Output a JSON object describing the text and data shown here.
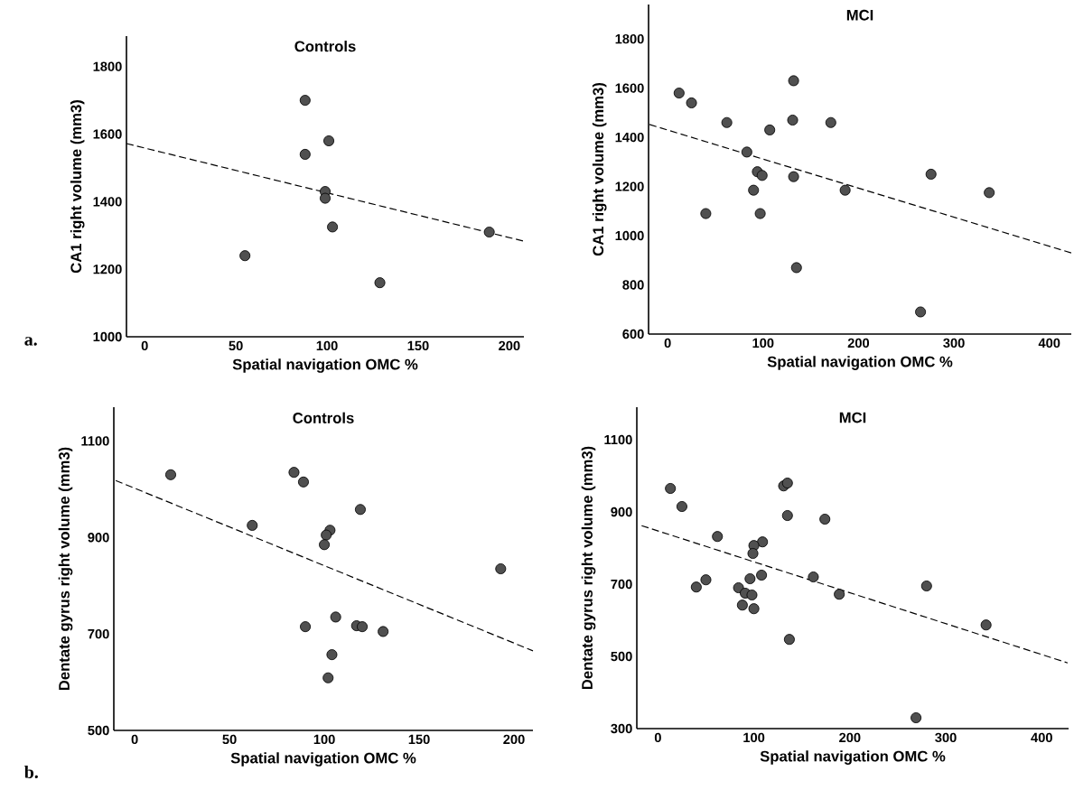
{
  "chart_data": [
    {
      "type": "scatter",
      "title": "Controls",
      "xlabel": "Spatial navigation OMC %",
      "ylabel": "CA1 right volume (mm3)",
      "xlim": [
        -10,
        208
      ],
      "ylim": [
        1000,
        1890
      ],
      "xticks": [
        0,
        50,
        100,
        150,
        200
      ],
      "yticks": [
        1000,
        1200,
        1400,
        1600,
        1800
      ],
      "annotations": [
        "a."
      ],
      "series": [
        {
          "marker": "circle",
          "color": "#505050",
          "x": [
            88,
            101,
            88,
            99,
            99,
            103,
            55,
            129,
            189
          ],
          "values": [
            1700,
            1580,
            1540,
            1430,
            1410,
            1325,
            1240,
            1160,
            1310
          ]
        },
        {
          "type": "line",
          "line_style": "dashed",
          "color": "#000000",
          "x": [
            -10,
            208
          ],
          "values": [
            1572,
            1283
          ]
        }
      ]
    },
    {
      "type": "scatter",
      "title": "MCI",
      "xlabel": "Spatial navigation OMC %",
      "ylabel": "CA1 right volume (mm3)",
      "xlim": [
        -20,
        423
      ],
      "ylim": [
        600,
        1940
      ],
      "xticks": [
        0,
        100,
        200,
        300,
        400
      ],
      "yticks": [
        600,
        800,
        1000,
        1200,
        1400,
        1600,
        1800
      ],
      "series": [
        {
          "marker": "circle",
          "color": "#505050",
          "x": [
            12,
            25,
            132,
            62,
            107,
            131,
            171,
            83,
            94,
            99,
            132,
            90,
            186,
            276,
            337,
            40,
            97,
            135,
            265
          ],
          "values": [
            1580,
            1540,
            1630,
            1460,
            1430,
            1470,
            1460,
            1340,
            1260,
            1245,
            1240,
            1185,
            1185,
            1250,
            1175,
            1090,
            1090,
            870,
            690
          ]
        },
        {
          "type": "line",
          "line_style": "dashed",
          "color": "#000000",
          "x": [
            -19,
            423
          ],
          "values": [
            1452,
            930
          ]
        }
      ]
    },
    {
      "type": "scatter",
      "title": "Controls",
      "xlabel": "Spatial navigation OMC %",
      "ylabel": "Dentate gyrus right volume (mm3)",
      "xlim": [
        -11,
        210
      ],
      "ylim": [
        500,
        1170
      ],
      "xticks": [
        0,
        50,
        100,
        150,
        200
      ],
      "yticks": [
        500,
        700,
        900,
        1100
      ],
      "annotations": [
        "b."
      ],
      "series": [
        {
          "marker": "circle",
          "color": "#505050",
          "x": [
            19,
            84,
            89,
            119,
            62,
            103,
            101,
            100,
            193,
            106,
            90,
            117,
            120,
            131,
            104,
            102
          ],
          "values": [
            1030,
            1035,
            1015,
            958,
            925,
            915,
            905,
            885,
            835,
            735,
            715,
            717,
            715,
            705,
            657,
            609
          ]
        },
        {
          "type": "line",
          "line_style": "dashed",
          "color": "#000000",
          "x": [
            -10,
            210
          ],
          "values": [
            1018,
            665
          ]
        }
      ]
    },
    {
      "type": "scatter",
      "title": "MCI",
      "xlabel": "Spatial navigation OMC %",
      "ylabel": "Dentate gyrus right volume (mm3)",
      "xlim": [
        -22,
        428
      ],
      "ylim": [
        300,
        1190
      ],
      "xticks": [
        0,
        100,
        200,
        300,
        400
      ],
      "yticks": [
        300,
        500,
        700,
        900,
        1100
      ],
      "series": [
        {
          "marker": "circle",
          "color": "#505050",
          "x": [
            13,
            25,
            131,
            135,
            135,
            174,
            62,
            109,
            100,
            99,
            162,
            108,
            96,
            50,
            40,
            84,
            91,
            98,
            280,
            189,
            88,
            100,
            342,
            137,
            269
          ],
          "values": [
            965,
            915,
            972,
            980,
            890,
            880,
            832,
            817,
            807,
            785,
            720,
            725,
            715,
            712,
            692,
            690,
            675,
            670,
            695,
            672,
            642,
            632,
            587,
            547,
            330
          ]
        },
        {
          "type": "line",
          "line_style": "dashed",
          "color": "#000000",
          "x": [
            -17,
            427
          ],
          "values": [
            862,
            482
          ]
        }
      ]
    }
  ]
}
